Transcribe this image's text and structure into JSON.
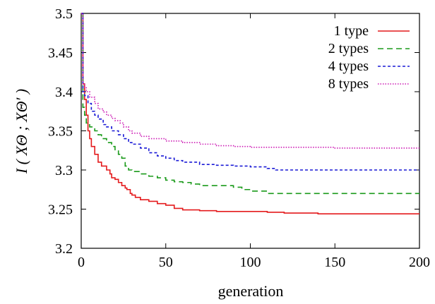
{
  "chart_data": {
    "type": "line",
    "xlabel": "generation",
    "ylabel": "I ( XΘ ; XΘ′ )",
    "xlim": [
      0,
      200
    ],
    "ylim": [
      3.2,
      3.5
    ],
    "xticks": [
      0,
      50,
      100,
      150,
      200
    ],
    "yticks": [
      3.2,
      3.25,
      3.3,
      3.35,
      3.4,
      3.45,
      3.5
    ],
    "xtick_labels": [
      "0",
      "50",
      "100",
      "150",
      "200"
    ],
    "ytick_labels": [
      "3.2",
      "3.25",
      "3.3",
      "3.35",
      "3.4",
      "3.45",
      "3.5"
    ],
    "grid": false,
    "legend_position": "top-right",
    "series": [
      {
        "name": "1 type",
        "color": "#e41a1c",
        "dash": "solid",
        "points": [
          [
            0,
            3.5
          ],
          [
            1,
            3.41
          ],
          [
            2,
            3.39
          ],
          [
            3,
            3.37
          ],
          [
            4,
            3.35
          ],
          [
            5,
            3.34
          ],
          [
            6,
            3.33
          ],
          [
            8,
            3.32
          ],
          [
            10,
            3.31
          ],
          [
            12,
            3.305
          ],
          [
            15,
            3.3
          ],
          [
            17,
            3.295
          ],
          [
            18,
            3.29
          ],
          [
            20,
            3.288
          ],
          [
            22,
            3.284
          ],
          [
            24,
            3.28
          ],
          [
            26,
            3.277
          ],
          [
            27,
            3.275
          ],
          [
            29,
            3.27
          ],
          [
            30,
            3.268
          ],
          [
            32,
            3.265
          ],
          [
            35,
            3.262
          ],
          [
            40,
            3.26
          ],
          [
            45,
            3.257
          ],
          [
            50,
            3.255
          ],
          [
            55,
            3.251
          ],
          [
            60,
            3.249
          ],
          [
            70,
            3.248
          ],
          [
            80,
            3.247
          ],
          [
            90,
            3.247
          ],
          [
            110,
            3.246
          ],
          [
            120,
            3.245
          ],
          [
            135,
            3.245
          ],
          [
            140,
            3.244
          ],
          [
            150,
            3.244
          ],
          [
            200,
            3.244
          ]
        ]
      },
      {
        "name": "2 types",
        "color": "#1a9a1a",
        "dash": "dash",
        "points": [
          [
            0,
            3.5
          ],
          [
            1,
            3.38
          ],
          [
            2,
            3.37
          ],
          [
            3,
            3.36
          ],
          [
            5,
            3.355
          ],
          [
            8,
            3.35
          ],
          [
            10,
            3.345
          ],
          [
            12,
            3.34
          ],
          [
            15,
            3.335
          ],
          [
            18,
            3.33
          ],
          [
            20,
            3.325
          ],
          [
            22,
            3.32
          ],
          [
            24,
            3.315
          ],
          [
            26,
            3.305
          ],
          [
            28,
            3.3
          ],
          [
            30,
            3.298
          ],
          [
            35,
            3.295
          ],
          [
            40,
            3.292
          ],
          [
            45,
            3.29
          ],
          [
            50,
            3.287
          ],
          [
            55,
            3.285
          ],
          [
            60,
            3.284
          ],
          [
            65,
            3.282
          ],
          [
            70,
            3.28
          ],
          [
            80,
            3.28
          ],
          [
            90,
            3.278
          ],
          [
            95,
            3.275
          ],
          [
            100,
            3.273
          ],
          [
            110,
            3.27
          ],
          [
            120,
            3.27
          ],
          [
            200,
            3.27
          ]
        ]
      },
      {
        "name": "4 types",
        "color": "#1a1ad6",
        "dash": "shortdash",
        "points": [
          [
            0,
            3.5
          ],
          [
            1,
            3.4
          ],
          [
            2,
            3.395
          ],
          [
            4,
            3.385
          ],
          [
            6,
            3.375
          ],
          [
            8,
            3.37
          ],
          [
            10,
            3.365
          ],
          [
            13,
            3.358
          ],
          [
            15,
            3.355
          ],
          [
            18,
            3.35
          ],
          [
            22,
            3.345
          ],
          [
            25,
            3.34
          ],
          [
            28,
            3.335
          ],
          [
            30,
            3.333
          ],
          [
            35,
            3.328
          ],
          [
            40,
            3.322
          ],
          [
            45,
            3.318
          ],
          [
            50,
            3.315
          ],
          [
            55,
            3.312
          ],
          [
            60,
            3.31
          ],
          [
            70,
            3.307
          ],
          [
            80,
            3.306
          ],
          [
            90,
            3.305
          ],
          [
            100,
            3.304
          ],
          [
            110,
            3.302
          ],
          [
            115,
            3.3
          ],
          [
            200,
            3.3
          ]
        ]
      },
      {
        "name": "8 types",
        "color": "#cc1ab4",
        "dash": "dot",
        "points": [
          [
            0,
            3.5
          ],
          [
            1,
            3.41
          ],
          [
            2,
            3.405
          ],
          [
            3,
            3.4
          ],
          [
            5,
            3.393
          ],
          [
            8,
            3.385
          ],
          [
            10,
            3.378
          ],
          [
            13,
            3.374
          ],
          [
            15,
            3.37
          ],
          [
            18,
            3.366
          ],
          [
            20,
            3.363
          ],
          [
            23,
            3.36
          ],
          [
            25,
            3.355
          ],
          [
            28,
            3.35
          ],
          [
            30,
            3.347
          ],
          [
            35,
            3.343
          ],
          [
            40,
            3.34
          ],
          [
            50,
            3.337
          ],
          [
            60,
            3.335
          ],
          [
            70,
            3.333
          ],
          [
            80,
            3.331
          ],
          [
            90,
            3.33
          ],
          [
            100,
            3.329
          ],
          [
            150,
            3.328
          ],
          [
            200,
            3.328
          ]
        ]
      }
    ]
  }
}
